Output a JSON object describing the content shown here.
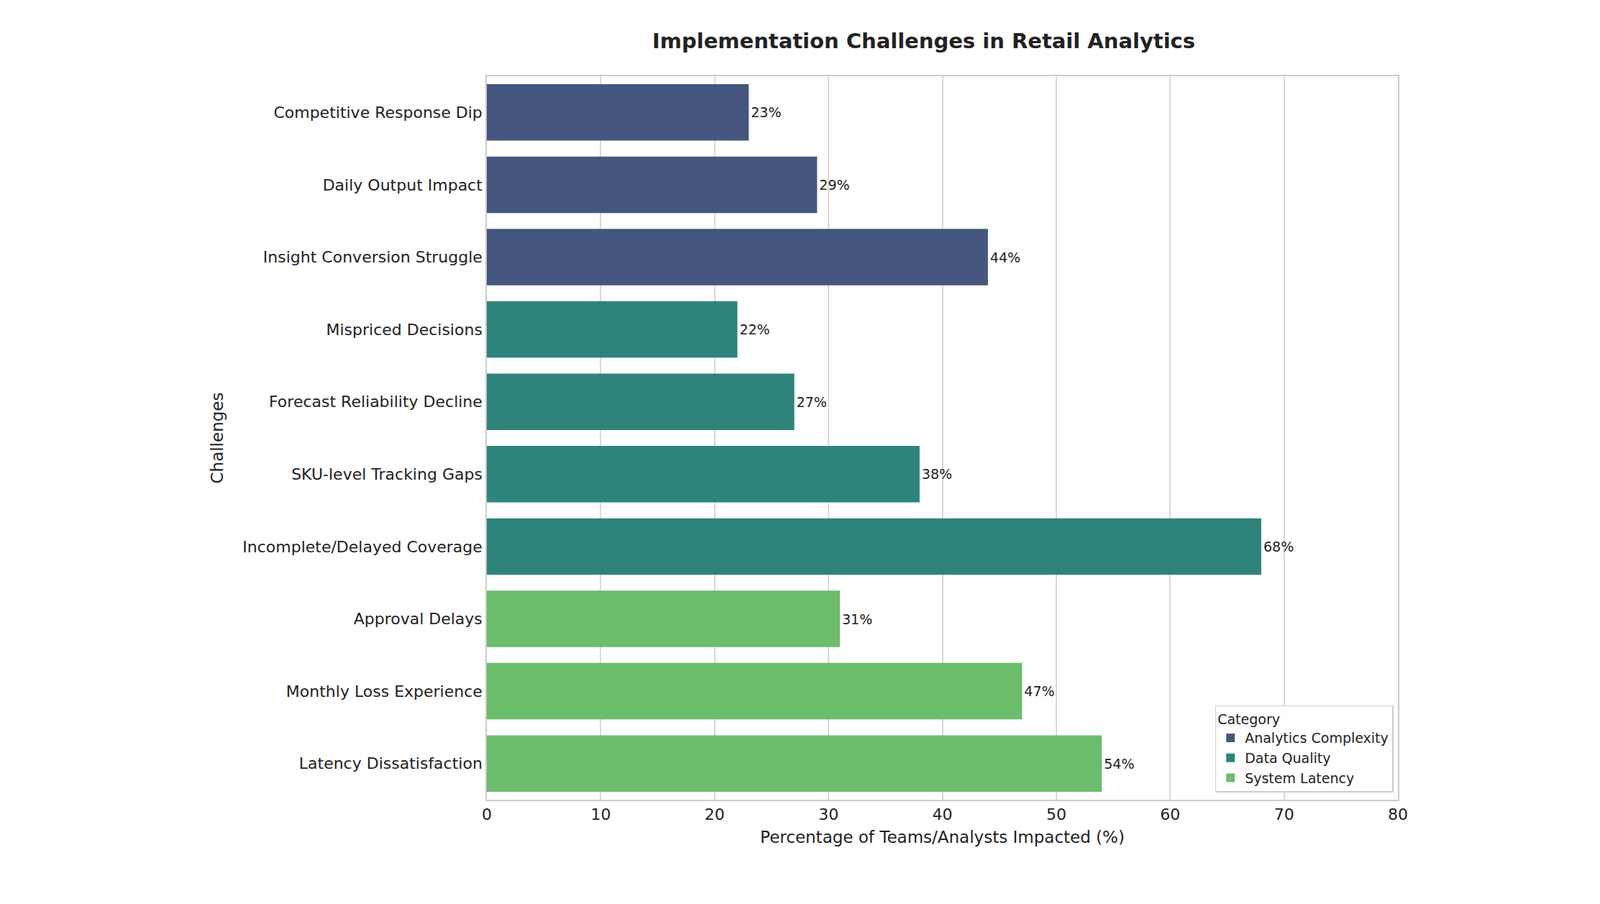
{
  "chart_data": {
    "type": "bar",
    "title": "Implementation Challenges in Retail Analytics",
    "x_label": "Percentage of Teams/Analysts Impacted (%)",
    "y_label": "Challenges",
    "legend_title": "Category",
    "orientation": "horizontal",
    "data_labels": true,
    "grid": true,
    "legend": "lower right",
    "categories": [
      "Competitive Response Dip",
      "Daily Output Impact",
      "Insight Conversion Struggle",
      "Mispriced Decisions",
      "Forecast Reliability Decline",
      "SKU-level Tracking Gaps",
      "Incomplete/Delayed Coverage",
      "Approval Delays",
      "Monthly Loss Experience",
      "Latency Dissatisfaction"
    ],
    "series": [
      {
        "name": "Analytics Complexity",
        "color": "#46577f",
        "values": [
          23,
          29,
          44,
          null,
          null,
          null,
          null,
          null,
          null,
          null
        ],
        "value_labels": [
          "23%",
          "29%",
          "44%",
          null,
          null,
          null,
          null,
          null,
          null,
          null
        ]
      },
      {
        "name": "Data Quality",
        "color": "#2e847b",
        "values": [
          null,
          null,
          null,
          22,
          27,
          38,
          68,
          null,
          null,
          null
        ],
        "value_labels": [
          null,
          null,
          null,
          "22%",
          "27%",
          "38%",
          "68%",
          null,
          null,
          null
        ]
      },
      {
        "name": "System Latency",
        "color": "#6bbd6c",
        "values": [
          null,
          null,
          null,
          null,
          null,
          null,
          null,
          31,
          47,
          54
        ],
        "value_labels": [
          null,
          null,
          null,
          null,
          null,
          null,
          null,
          "31%",
          "47%",
          "54%"
        ]
      }
    ],
    "xlim": [
      0,
      80
    ],
    "xticks": [
      0,
      10,
      20,
      30,
      40,
      50,
      60,
      70,
      80
    ]
  }
}
